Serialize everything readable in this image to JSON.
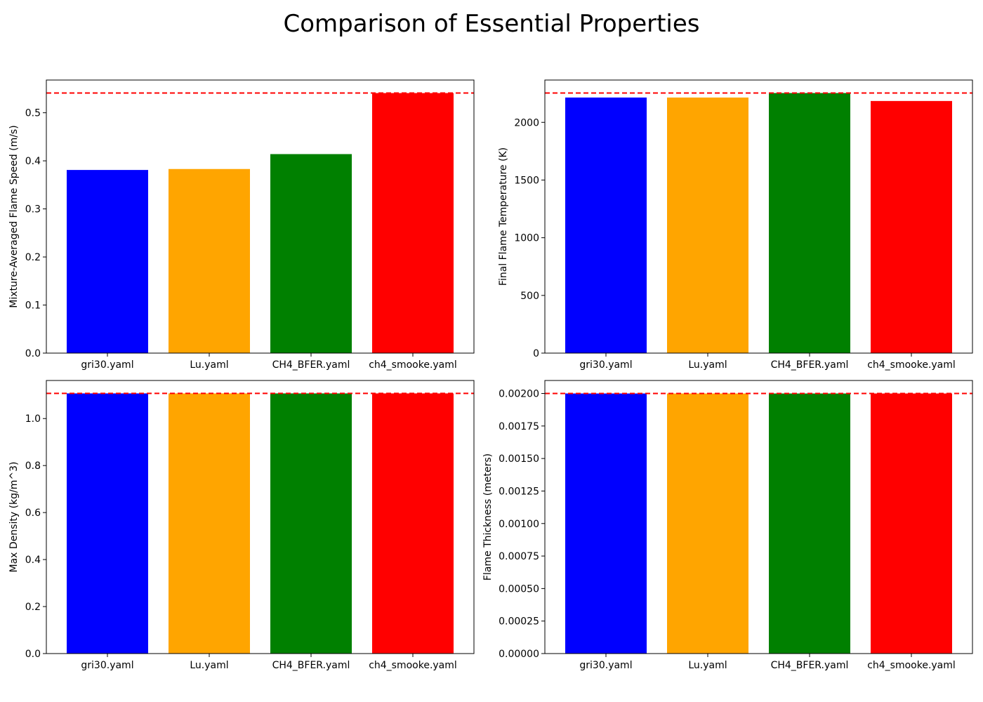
{
  "figure": {
    "title": "Comparison of Essential Properties"
  },
  "chart_data": [
    {
      "type": "bar",
      "categories": [
        "gri30.yaml",
        "Lu.yaml",
        "CH4_BFER.yaml",
        "ch4_smooke.yaml"
      ],
      "values": [
        0.381,
        0.383,
        0.414,
        0.541
      ],
      "colors": [
        "#0000ff",
        "#ffa500",
        "#008000",
        "#ff0000"
      ],
      "ylabel": "Mixture-Averaged Flame Speed (m/s)",
      "ylim": [
        0,
        0.5681
      ],
      "yticks": [
        0.0,
        0.1,
        0.2,
        0.3,
        0.4,
        0.5
      ],
      "ytick_labels": [
        "0.0",
        "0.1",
        "0.2",
        "0.3",
        "0.4",
        "0.5"
      ],
      "reference_line": {
        "value": 0.541,
        "color": "#ff0000",
        "style": "dashed"
      }
    },
    {
      "type": "bar",
      "categories": [
        "gri30.yaml",
        "Lu.yaml",
        "CH4_BFER.yaml",
        "ch4_smooke.yaml"
      ],
      "values": [
        2215,
        2215,
        2254,
        2185
      ],
      "colors": [
        "#0000ff",
        "#ffa500",
        "#008000",
        "#ff0000"
      ],
      "ylabel": "Final Flame Temperature (K)",
      "ylim": [
        0,
        2366.7
      ],
      "yticks": [
        0,
        500,
        1000,
        1500,
        2000
      ],
      "ytick_labels": [
        "0",
        "500",
        "1000",
        "1500",
        "2000"
      ],
      "reference_line": {
        "value": 2254,
        "color": "#ff0000",
        "style": "dashed"
      }
    },
    {
      "type": "bar",
      "categories": [
        "gri30.yaml",
        "Lu.yaml",
        "CH4_BFER.yaml",
        "ch4_smooke.yaml"
      ],
      "values": [
        1.107,
        1.107,
        1.107,
        1.107
      ],
      "colors": [
        "#0000ff",
        "#ffa500",
        "#008000",
        "#ff0000"
      ],
      "ylabel": "Max Density (kg/m^3)",
      "ylim": [
        0,
        1.162
      ],
      "yticks": [
        0.0,
        0.2,
        0.4,
        0.6,
        0.8,
        1.0
      ],
      "ytick_labels": [
        "0.0",
        "0.2",
        "0.4",
        "0.6",
        "0.8",
        "1.0"
      ],
      "reference_line": {
        "value": 1.107,
        "color": "#ff0000",
        "style": "dashed"
      }
    },
    {
      "type": "bar",
      "categories": [
        "gri30.yaml",
        "Lu.yaml",
        "CH4_BFER.yaml",
        "ch4_smooke.yaml"
      ],
      "values": [
        0.002,
        0.002,
        0.002,
        0.002
      ],
      "colors": [
        "#0000ff",
        "#ffa500",
        "#008000",
        "#ff0000"
      ],
      "ylabel": "Flame Thickness (meters)",
      "ylim": [
        0,
        0.0021
      ],
      "yticks": [
        0.0,
        0.00025,
        0.0005,
        0.00075,
        0.001,
        0.00125,
        0.0015,
        0.00175,
        0.002
      ],
      "ytick_labels": [
        "0.00000",
        "0.00025",
        "0.00050",
        "0.00075",
        "0.00100",
        "0.00125",
        "0.00150",
        "0.00175",
        "0.00200"
      ],
      "reference_line": {
        "value": 0.002,
        "color": "#ff0000",
        "style": "dashed"
      }
    }
  ]
}
